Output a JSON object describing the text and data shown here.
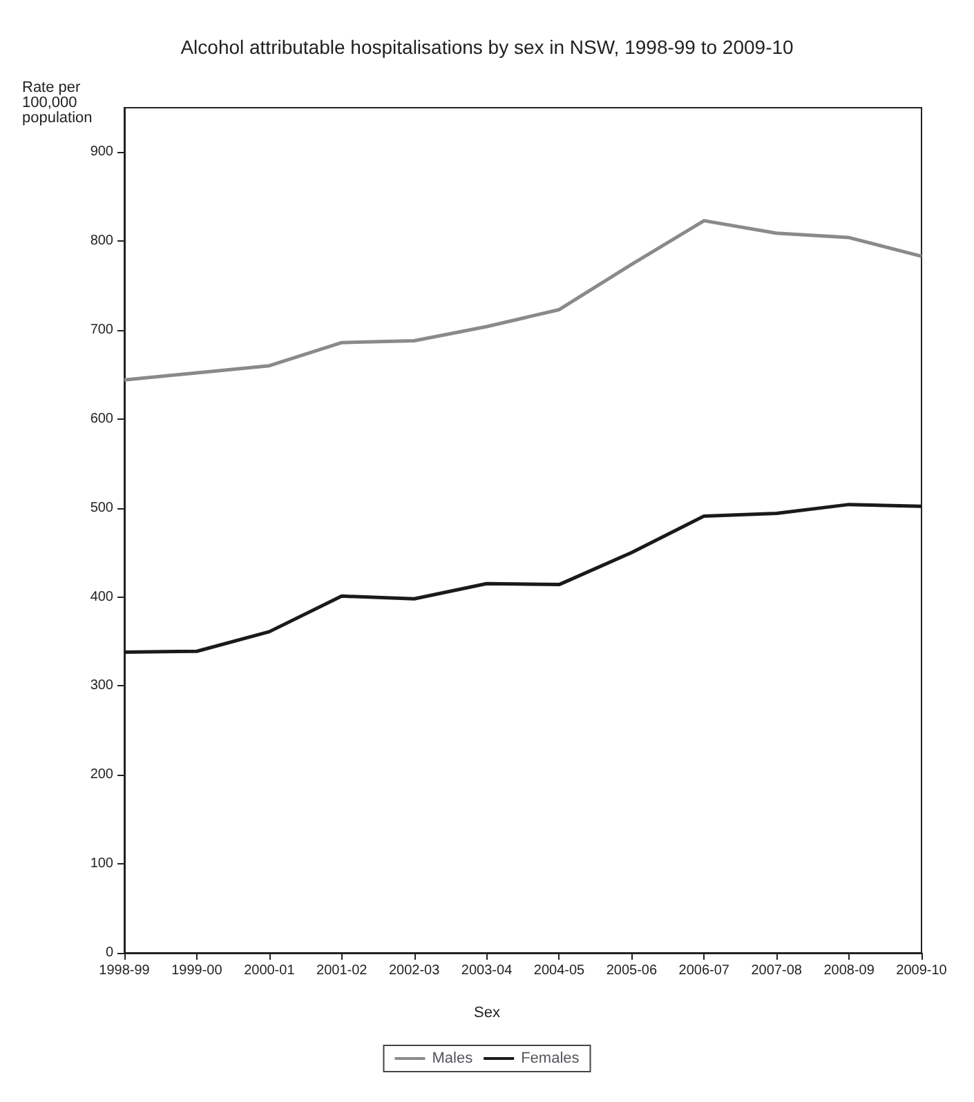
{
  "chart_data": {
    "type": "line",
    "title": "Alcohol attributable hospitalisations by sex in NSW, 1998-99 to 2009-10",
    "ylabel": "Rate per\n100,000\npopulation",
    "legend_title": "Sex",
    "legend": "bottom",
    "grid": false,
    "marker": "none",
    "line_style": "solid",
    "categories": [
      "1998-99",
      "1999-00",
      "2000-01",
      "2001-02",
      "2002-03",
      "2003-04",
      "2004-05",
      "2005-06",
      "2006-07",
      "2007-08",
      "2008-09",
      "2009-10"
    ],
    "ylim": [
      0,
      950
    ],
    "yticks": [
      0,
      100,
      200,
      300,
      400,
      500,
      600,
      700,
      800,
      900
    ],
    "series": [
      {
        "name": "Males",
        "color": "#8a8a8a",
        "values": [
          644,
          652,
          660,
          686,
          688,
          704,
          723,
          774,
          823,
          809,
          804,
          783
        ]
      },
      {
        "name": "Females",
        "color": "#1a1a1a",
        "values": [
          338,
          339,
          361,
          401,
          398,
          415,
          414,
          450,
          491,
          494,
          504,
          502
        ]
      }
    ]
  }
}
